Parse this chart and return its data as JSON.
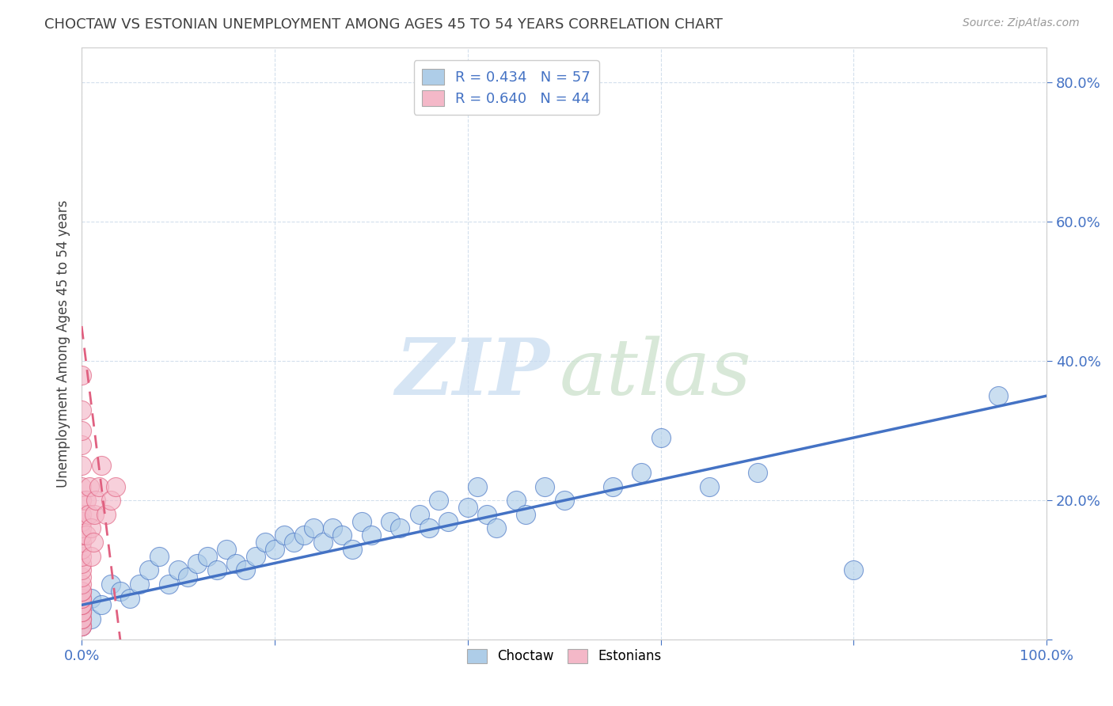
{
  "title": "CHOCTAW VS ESTONIAN UNEMPLOYMENT AMONG AGES 45 TO 54 YEARS CORRELATION CHART",
  "source": "Source: ZipAtlas.com",
  "ylabel": "Unemployment Among Ages 45 to 54 years",
  "choctaw_R": 0.434,
  "choctaw_N": 57,
  "estonian_R": 0.64,
  "estonian_N": 44,
  "choctaw_color": "#aecde8",
  "estonian_color": "#f4b8c8",
  "choctaw_line_color": "#4472c4",
  "estonian_line_color": "#e06080",
  "grid_color": "#c8d8e8",
  "xlim": [
    0,
    1.0
  ],
  "ylim": [
    0,
    0.85
  ],
  "choctaw_x": [
    0.0,
    0.0,
    0.0,
    0.0,
    0.0,
    0.01,
    0.01,
    0.02,
    0.03,
    0.04,
    0.05,
    0.06,
    0.07,
    0.08,
    0.09,
    0.1,
    0.11,
    0.12,
    0.13,
    0.14,
    0.15,
    0.16,
    0.17,
    0.18,
    0.19,
    0.2,
    0.21,
    0.22,
    0.23,
    0.24,
    0.25,
    0.26,
    0.27,
    0.28,
    0.29,
    0.3,
    0.32,
    0.33,
    0.35,
    0.36,
    0.37,
    0.38,
    0.4,
    0.41,
    0.42,
    0.43,
    0.45,
    0.46,
    0.48,
    0.5,
    0.55,
    0.58,
    0.6,
    0.65,
    0.7,
    0.8,
    0.95
  ],
  "choctaw_y": [
    0.02,
    0.03,
    0.04,
    0.05,
    0.05,
    0.03,
    0.06,
    0.05,
    0.08,
    0.07,
    0.06,
    0.08,
    0.1,
    0.12,
    0.08,
    0.1,
    0.09,
    0.11,
    0.12,
    0.1,
    0.13,
    0.11,
    0.1,
    0.12,
    0.14,
    0.13,
    0.15,
    0.14,
    0.15,
    0.16,
    0.14,
    0.16,
    0.15,
    0.13,
    0.17,
    0.15,
    0.17,
    0.16,
    0.18,
    0.16,
    0.2,
    0.17,
    0.19,
    0.22,
    0.18,
    0.16,
    0.2,
    0.18,
    0.22,
    0.2,
    0.22,
    0.24,
    0.29,
    0.22,
    0.24,
    0.1,
    0.35
  ],
  "estonian_x": [
    0.0,
    0.0,
    0.0,
    0.0,
    0.0,
    0.0,
    0.0,
    0.0,
    0.0,
    0.0,
    0.0,
    0.0,
    0.0,
    0.0,
    0.0,
    0.0,
    0.0,
    0.0,
    0.0,
    0.0,
    0.0,
    0.0,
    0.0,
    0.0,
    0.0,
    0.0,
    0.0,
    0.0,
    0.0,
    0.0,
    0.005,
    0.005,
    0.007,
    0.008,
    0.01,
    0.01,
    0.012,
    0.013,
    0.015,
    0.018,
    0.02,
    0.025,
    0.03,
    0.035
  ],
  "estonian_y": [
    0.02,
    0.02,
    0.03,
    0.03,
    0.04,
    0.04,
    0.05,
    0.05,
    0.06,
    0.06,
    0.07,
    0.07,
    0.08,
    0.09,
    0.1,
    0.11,
    0.12,
    0.13,
    0.14,
    0.15,
    0.16,
    0.17,
    0.18,
    0.2,
    0.22,
    0.25,
    0.28,
    0.3,
    0.33,
    0.38,
    0.2,
    0.15,
    0.18,
    0.22,
    0.12,
    0.16,
    0.14,
    0.18,
    0.2,
    0.22,
    0.25,
    0.18,
    0.2,
    0.22
  ],
  "choctaw_trend_x0": 0.0,
  "choctaw_trend_y0": 0.05,
  "choctaw_trend_x1": 1.0,
  "choctaw_trend_y1": 0.35,
  "estonian_trend_x0": 0.0,
  "estonian_trend_y0": 0.45,
  "estonian_trend_x1": 0.04,
  "estonian_trend_y1": 0.0
}
